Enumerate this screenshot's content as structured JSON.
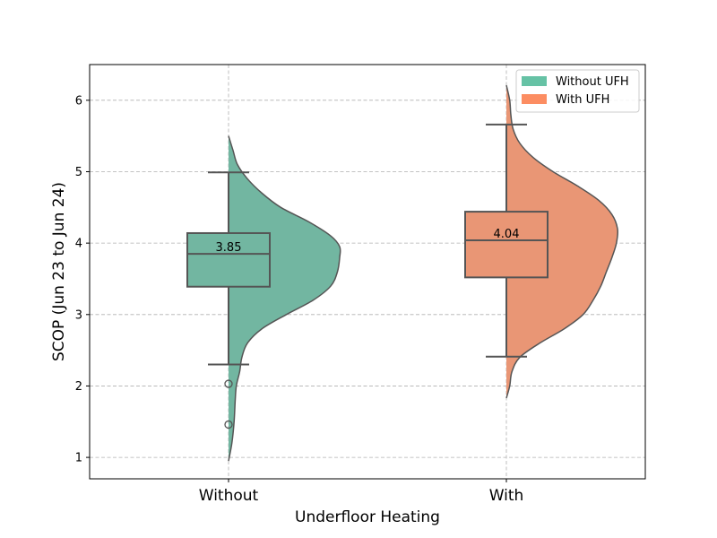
{
  "chart_data": {
    "type": "violin",
    "xlabel": "Underfloor Heating",
    "ylabel": "SCOP (Jun 23 to Jun 24)",
    "categories": [
      "Without",
      "With"
    ],
    "ylim": [
      0.7,
      6.5
    ],
    "yticks": [
      1,
      2,
      3,
      4,
      5,
      6
    ],
    "grid": true,
    "legend": {
      "placement": "top-right",
      "entries": [
        {
          "label": "Without UFH",
          "color": "#66c2a5"
        },
        {
          "label": "With UFH",
          "color": "#fc8d62"
        }
      ]
    },
    "series": [
      {
        "category": "Without",
        "fill": "#72b6a1",
        "box": {
          "whisker_low": 2.3,
          "q1": 3.39,
          "median": 3.85,
          "q3": 4.14,
          "whisker_high": 4.99
        },
        "median_label": "3.85",
        "outliers": [
          2.03,
          1.46
        ],
        "density": [
          [
            0.95,
            0.0
          ],
          [
            1.2,
            0.03
          ],
          [
            1.5,
            0.05
          ],
          [
            1.8,
            0.06
          ],
          [
            2.0,
            0.07
          ],
          [
            2.2,
            0.1
          ],
          [
            2.4,
            0.12
          ],
          [
            2.6,
            0.17
          ],
          [
            2.8,
            0.3
          ],
          [
            3.0,
            0.52
          ],
          [
            3.2,
            0.76
          ],
          [
            3.4,
            0.92
          ],
          [
            3.6,
            0.98
          ],
          [
            3.8,
            1.0
          ],
          [
            3.95,
            1.0
          ],
          [
            4.1,
            0.92
          ],
          [
            4.3,
            0.72
          ],
          [
            4.5,
            0.47
          ],
          [
            4.7,
            0.3
          ],
          [
            4.9,
            0.17
          ],
          [
            5.1,
            0.08
          ],
          [
            5.3,
            0.04
          ],
          [
            5.5,
            0.0
          ]
        ]
      },
      {
        "category": "With",
        "fill": "#e99675",
        "box": {
          "whisker_low": 2.41,
          "q1": 3.52,
          "median": 4.04,
          "q3": 4.44,
          "whisker_high": 5.66
        },
        "median_label": "4.04",
        "outliers": [],
        "density": [
          [
            1.83,
            0.0
          ],
          [
            2.0,
            0.03
          ],
          [
            2.2,
            0.05
          ],
          [
            2.4,
            0.12
          ],
          [
            2.6,
            0.3
          ],
          [
            2.8,
            0.52
          ],
          [
            3.0,
            0.69
          ],
          [
            3.2,
            0.78
          ],
          [
            3.4,
            0.85
          ],
          [
            3.6,
            0.9
          ],
          [
            3.8,
            0.95
          ],
          [
            4.0,
            0.99
          ],
          [
            4.2,
            1.0
          ],
          [
            4.4,
            0.95
          ],
          [
            4.6,
            0.83
          ],
          [
            4.8,
            0.64
          ],
          [
            5.0,
            0.42
          ],
          [
            5.2,
            0.24
          ],
          [
            5.4,
            0.12
          ],
          [
            5.6,
            0.06
          ],
          [
            5.8,
            0.04
          ],
          [
            6.0,
            0.03
          ],
          [
            6.21,
            0.0
          ]
        ]
      }
    ]
  }
}
